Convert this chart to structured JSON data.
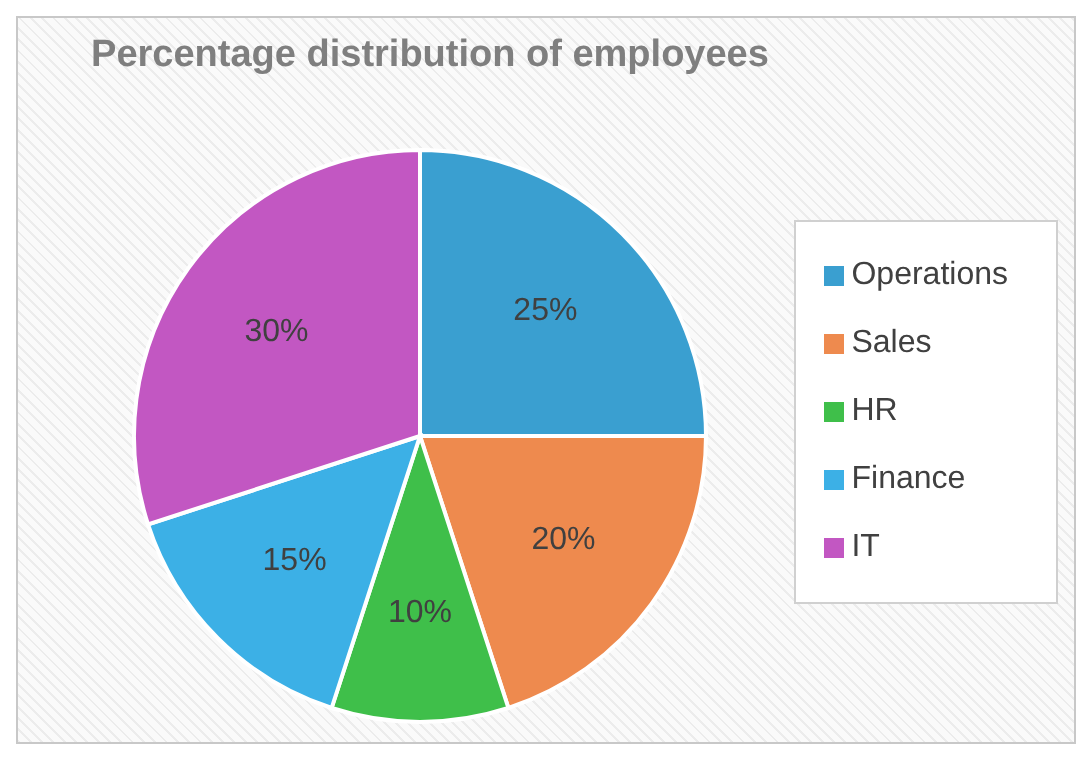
{
  "chart_data": {
    "type": "pie",
    "title": "Percentage distribution of employees",
    "categories": [
      "Operations",
      "Sales",
      "HR",
      "Finance",
      "IT"
    ],
    "values": [
      25,
      20,
      10,
      15,
      30
    ],
    "value_labels": [
      "25%",
      "20%",
      "10%",
      "15%",
      "30%"
    ],
    "colors": [
      "#3a9fd0",
      "#ee8a4e",
      "#3fbf4a",
      "#3cb0e6",
      "#c257c2"
    ],
    "legend": "right"
  }
}
